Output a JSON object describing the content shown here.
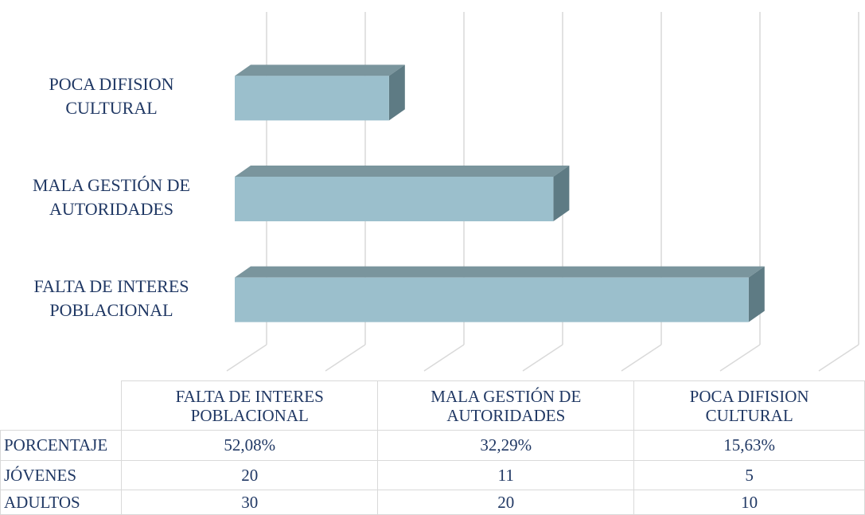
{
  "chart_data": {
    "type": "bar",
    "orientation": "horizontal",
    "categories": [
      "FALTA DE INTERES POBLACIONAL",
      "MALA GESTIÓN DE AUTORIDADES",
      "POCA DIFISION CULTURAL"
    ],
    "series": [
      {
        "name": "PORCENTAJE",
        "color": "#9bbfcc",
        "values": [
          52.08,
          32.29,
          15.63
        ],
        "value_labels": [
          "52,08%",
          "32,29%",
          "15,63%"
        ]
      }
    ],
    "data_table": [
      {
        "name": "JÓVENES",
        "values": [
          20,
          11,
          5
        ]
      },
      {
        "name": "ADULTOS",
        "values": [
          30,
          20,
          10
        ]
      }
    ],
    "xlim": [
      0,
      60
    ],
    "xticks": [
      0,
      10,
      20,
      30,
      40,
      50,
      60
    ],
    "grid": true
  }
}
